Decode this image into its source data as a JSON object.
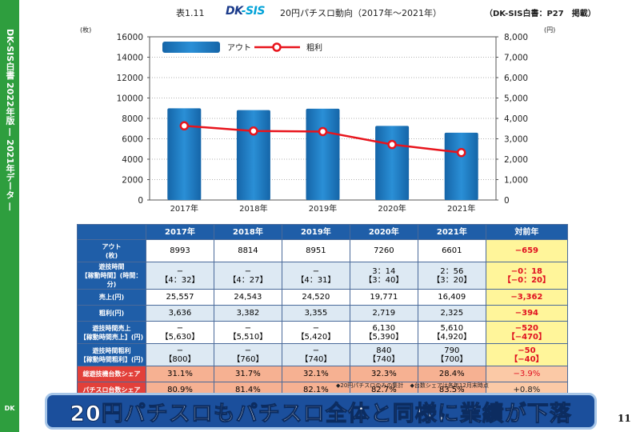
{
  "sidebar": {
    "text": "DK-SIS白書 2022年版 — 2021年データ —",
    "logo": "DK"
  },
  "header": {
    "table_no": "表1.11",
    "logo_dk": "DK",
    "logo_sis": "-SIS",
    "title": "20円パチスロ動向（2017年～2021年）",
    "source": "（DK-SIS白書：P27　掲載）"
  },
  "chart_data": {
    "type": "bar",
    "categories": [
      "2017年",
      "2018年",
      "2019年",
      "2020年",
      "2021年"
    ],
    "series": [
      {
        "name": "アウト",
        "type": "bar",
        "axis": "left",
        "values": [
          8993,
          8814,
          8951,
          7260,
          6601
        ],
        "color": "#1f7fc4"
      },
      {
        "name": "粗利",
        "type": "line",
        "axis": "right",
        "values": [
          3636,
          3382,
          3355,
          2719,
          2325
        ],
        "color": "#e8141c"
      }
    ],
    "left_unit": "(枚)",
    "right_unit": "(円)",
    "ylim_left": [
      0,
      16000
    ],
    "ylim_right": [
      0,
      8000
    ],
    "left_ticks": [
      "16000",
      "14000",
      "12000",
      "10000",
      "8000",
      "6000",
      "4000",
      "2000",
      "0"
    ],
    "right_ticks": [
      "8,000",
      "7,000",
      "6,000",
      "5,000",
      "4,000",
      "3,000",
      "2,000",
      "1,000",
      "0"
    ],
    "grid": true,
    "legend_position": "top"
  },
  "table": {
    "columns": [
      "2017年",
      "2018年",
      "2019年",
      "2020年",
      "2021年",
      "対前年"
    ],
    "rows": [
      {
        "label": "アウト\n(枚)",
        "cells": [
          "8993",
          "8814",
          "8951",
          "7260",
          "6601"
        ],
        "yoy": "−659"
      },
      {
        "label": "遊技時間\n【稼動時間】(時間：分)",
        "cells": [
          "−\n【4：32】",
          "−\n【4：27】",
          "−\n【4：31】",
          "3：14\n【3：40】",
          "2：56\n【3：20】"
        ],
        "yoy": "−0：18\n【−0：20】"
      },
      {
        "label": "売上(円)",
        "cells": [
          "25,557",
          "24,543",
          "24,520",
          "19,771",
          "16,409"
        ],
        "yoy": "−3,362"
      },
      {
        "label": "粗利(円)",
        "cells": [
          "3,636",
          "3,382",
          "3,355",
          "2,719",
          "2,325"
        ],
        "yoy": "−394"
      },
      {
        "label": "遊技時間売上\n【稼動時間売上】(円)",
        "cells": [
          "−\n【5,630】",
          "−\n【5,510】",
          "−\n【5,420】",
          "6,130\n【5,390】",
          "5,610\n【4,920】"
        ],
        "yoy": "−520\n【−470】"
      },
      {
        "label": "遊技時間粗利\n【稼動時間粗利】(円)",
        "cells": [
          "−\n【800】",
          "−\n【760】",
          "−\n【740】",
          "840\n【740】",
          "790\n【700】"
        ],
        "yoy": "−50\n【−40】"
      },
      {
        "label": "総遊技機台数シェア",
        "cells": [
          "31.1%",
          "31.7%",
          "32.1%",
          "32.3%",
          "28.4%"
        ],
        "yoy": "−3.9%"
      },
      {
        "label": "パチスロ台数シェア",
        "cells": [
          "80.9%",
          "81.4%",
          "82.1%",
          "82.7%",
          "83.5%"
        ],
        "yoy": "+0.8%"
      }
    ]
  },
  "notes": {
    "note1": "◆20円パチスロのみの集計",
    "note2": "◆台数シェアは各年12月末時点"
  },
  "banner": {
    "text": "20円パチスロもパチスロ全体と同様に業績が下落"
  },
  "page_number": "11"
}
